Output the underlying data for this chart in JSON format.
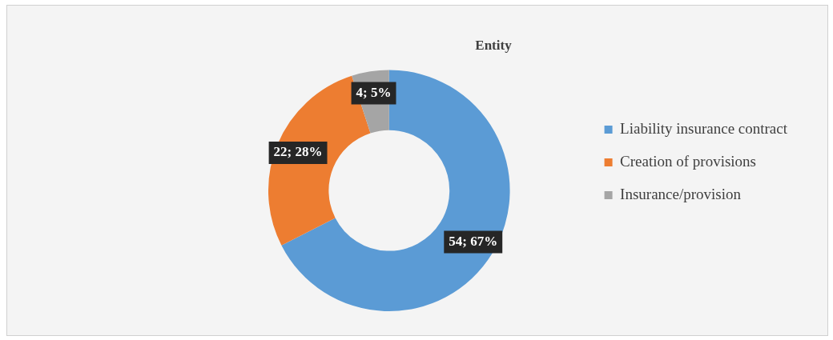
{
  "chart_data": {
    "type": "donut",
    "title": "Entity",
    "categories": [
      "Liability insurance contract",
      "Creation of provisions",
      "Insurance/provision"
    ],
    "values": [
      54,
      22,
      4
    ],
    "colors": [
      "#5b9bd5",
      "#ed7d31",
      "#a5a5a5"
    ],
    "value_labels": [
      "54; 67%",
      "22; 28%",
      "4; 5%"
    ],
    "legend": "right"
  }
}
